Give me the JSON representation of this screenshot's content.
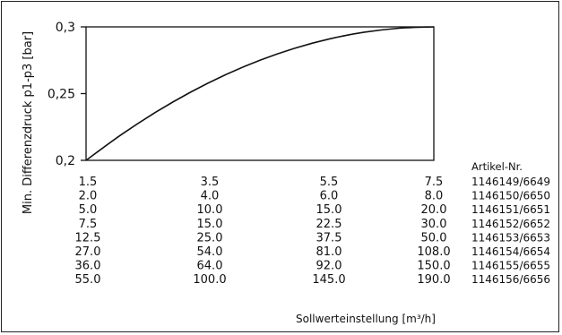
{
  "chart_data": {
    "type": "line",
    "title": "",
    "xlabel": "Sollwerteinstellung [m³/h]",
    "ylabel": "Min. Differenzdruck p1-p3 [bar]",
    "ylim": [
      0.2,
      0.3
    ],
    "yticks": [
      "0,3",
      "0,25",
      "0,2"
    ],
    "grid": false,
    "series": [
      {
        "x": [
          0,
          0.1,
          0.2,
          0.3,
          0.4,
          0.5,
          0.6,
          0.7,
          0.8,
          0.9,
          1.0
        ],
        "y": [
          0.2,
          0.219,
          0.236,
          0.251,
          0.264,
          0.275,
          0.284,
          0.291,
          0.296,
          0.299,
          0.3
        ]
      }
    ],
    "table_header": "Artikel-Nr.",
    "rows": [
      {
        "values": [
          "1.5",
          "3.5",
          "5.5",
          "7.5"
        ],
        "article": "1146149/6649"
      },
      {
        "values": [
          "2.0",
          "4.0",
          "6.0",
          "8.0"
        ],
        "article": "1146150/6650"
      },
      {
        "values": [
          "5.0",
          "10.0",
          "15.0",
          "20.0"
        ],
        "article": "1146151/6651"
      },
      {
        "values": [
          "7.5",
          "15.0",
          "22.5",
          "30.0"
        ],
        "article": "1146152/6652"
      },
      {
        "values": [
          "12.5",
          "25.0",
          "37.5",
          "50.0"
        ],
        "article": "1146153/6653"
      },
      {
        "values": [
          "27.0",
          "54.0",
          "81.0",
          "108.0"
        ],
        "article": "1146154/6654"
      },
      {
        "values": [
          "36.0",
          "64.0",
          "92.0",
          "150.0"
        ],
        "article": "1146155/6655"
      },
      {
        "values": [
          "55.0",
          "100.0",
          "145.0",
          "190.0"
        ],
        "article": "1146156/6656"
      }
    ]
  }
}
